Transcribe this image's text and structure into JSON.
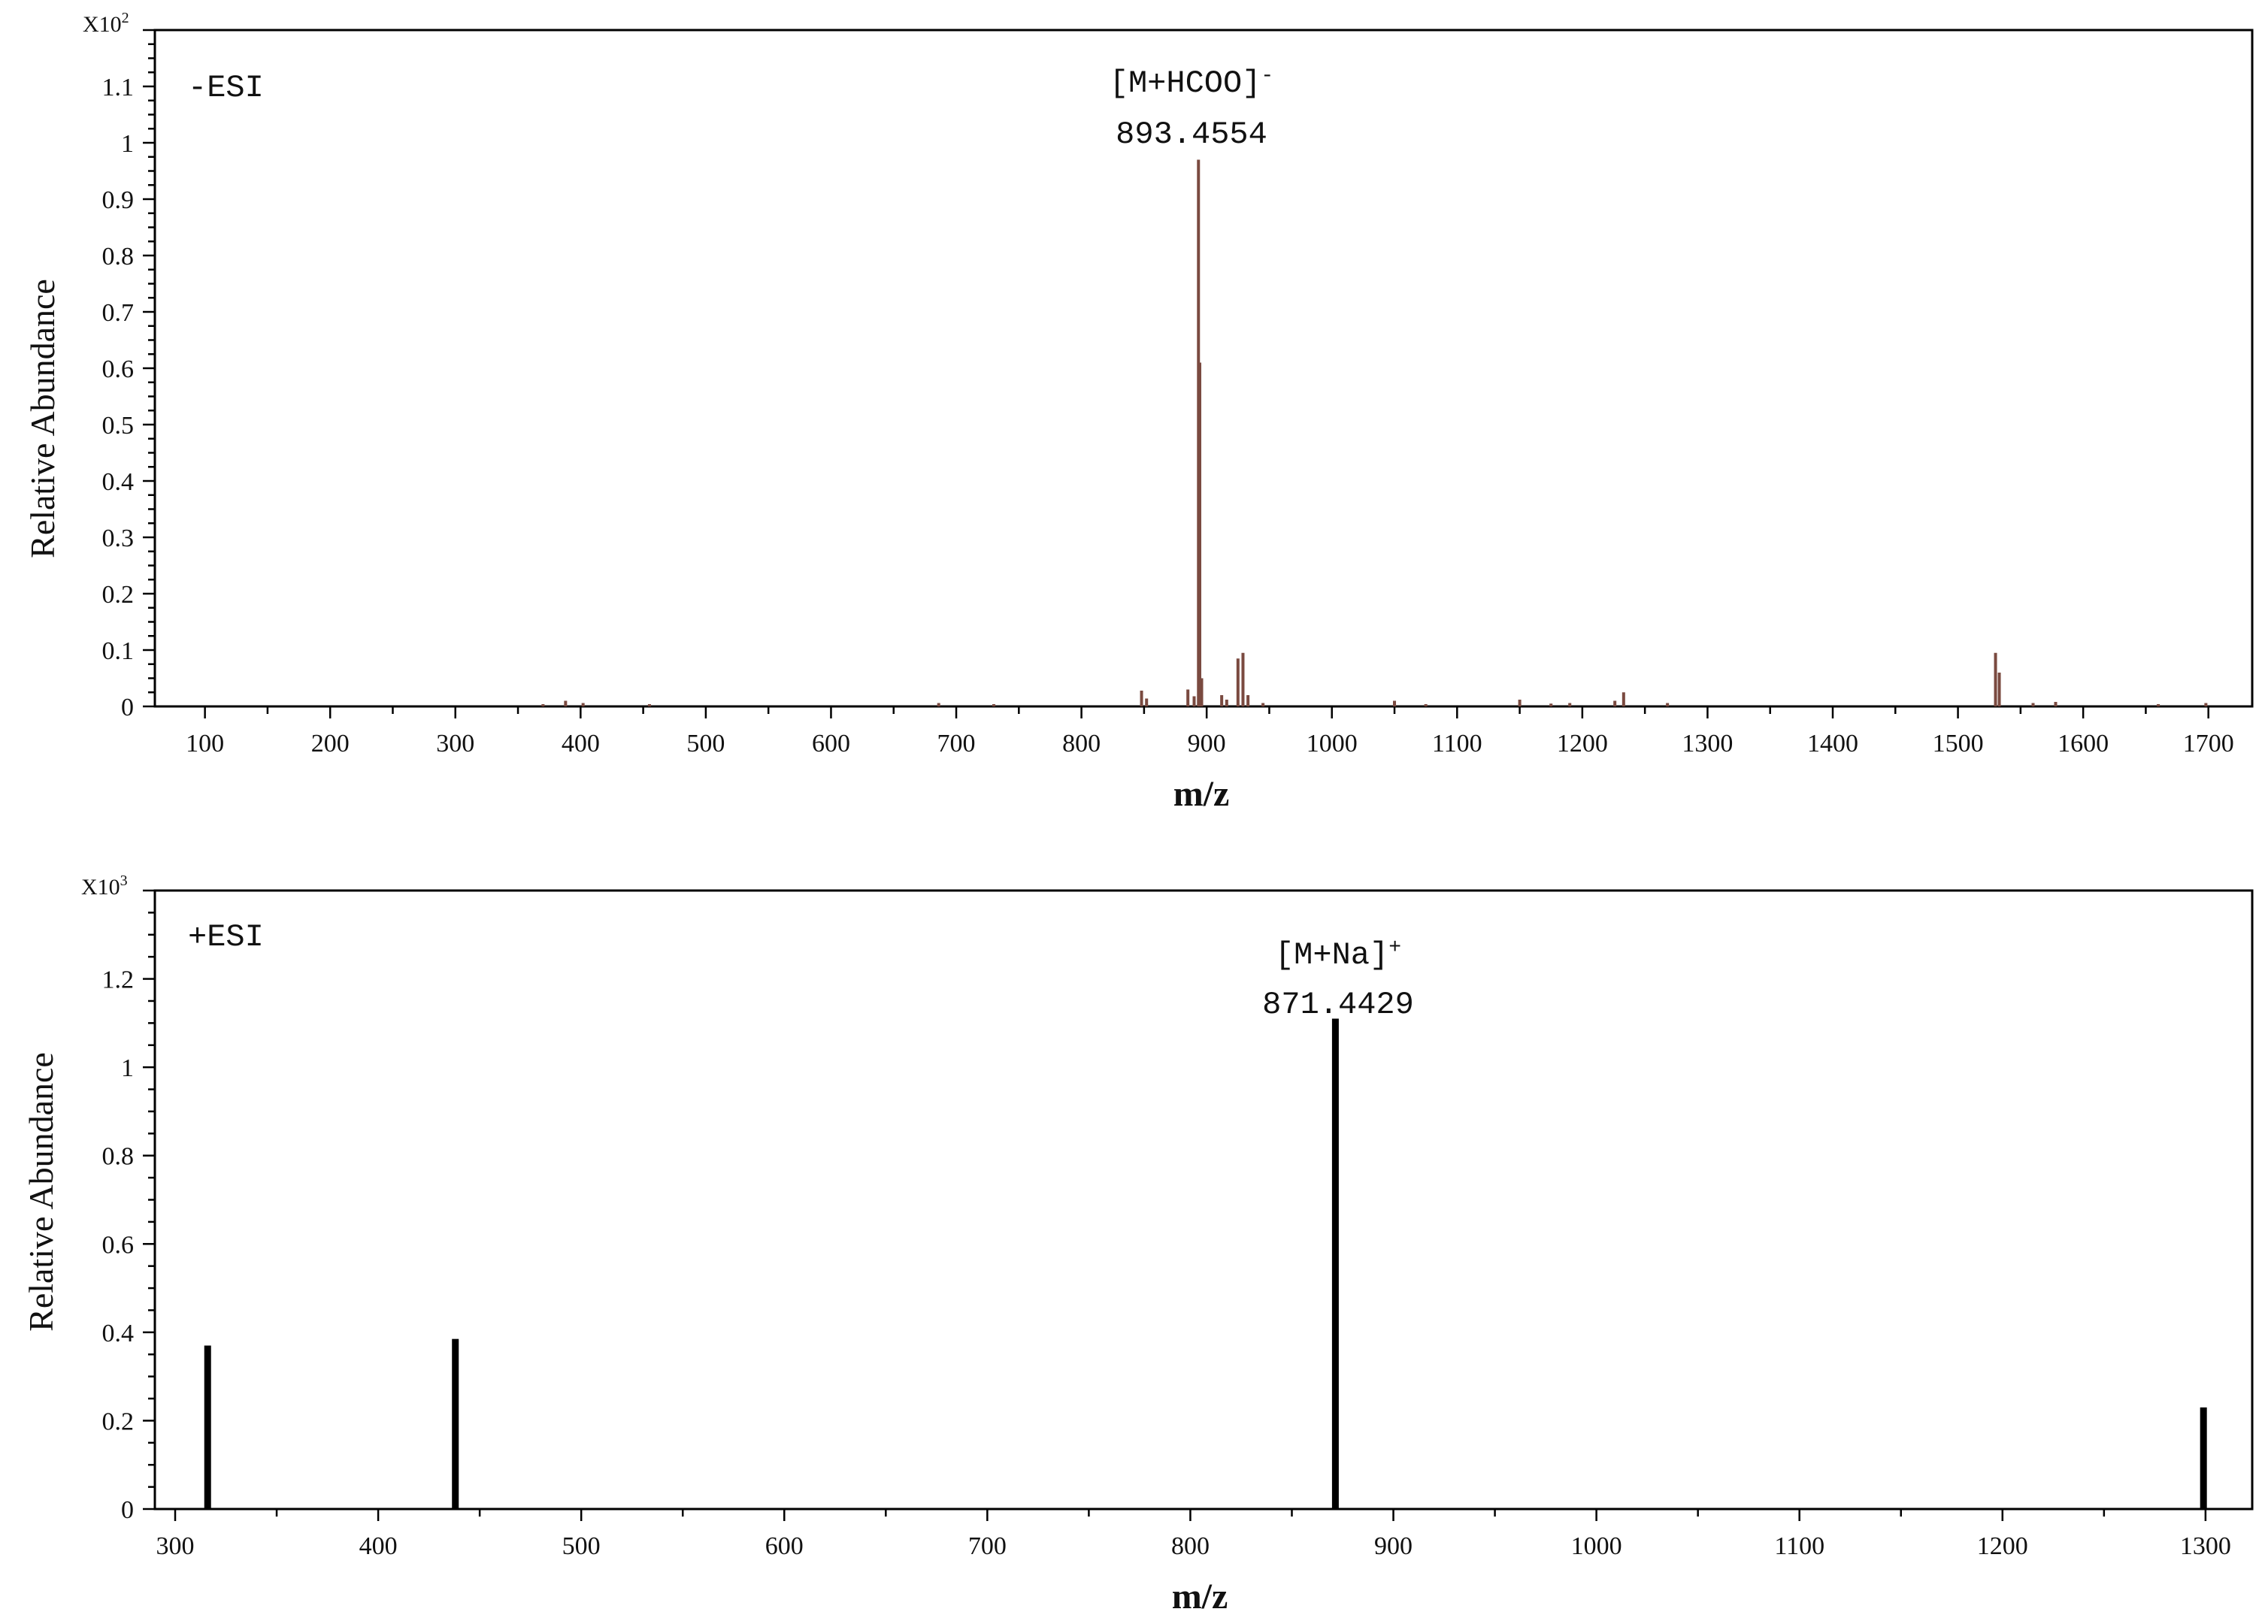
{
  "chart_data": [
    {
      "type": "bar",
      "mode_label": "-ESI",
      "exponent_label": "X10",
      "exponent_power": "2",
      "xlabel": "m/z",
      "ylabel": "Relative Abundance",
      "xlim": [
        60,
        1735
      ],
      "ylim": [
        0,
        1.2
      ],
      "xticks": [
        100,
        200,
        300,
        400,
        500,
        600,
        700,
        800,
        900,
        1000,
        1100,
        1200,
        1300,
        1400,
        1500,
        1600,
        1700
      ],
      "yticks": [
        0,
        0.1,
        0.2,
        0.3,
        0.4,
        0.5,
        0.6,
        0.7,
        0.8,
        0.9,
        1,
        1.1
      ],
      "ytick_labels": [
        "0",
        "0.1",
        "0.2",
        "0.3",
        "0.4",
        "0.5",
        "0.6",
        "0.7",
        "0.8",
        "0.9",
        "1",
        "1.1"
      ],
      "bar_color": "#7a4a40",
      "peaks": [
        {
          "mz": 370,
          "abundance": 0.004
        },
        {
          "mz": 388,
          "abundance": 0.01
        },
        {
          "mz": 402,
          "abundance": 0.006
        },
        {
          "mz": 455,
          "abundance": 0.004
        },
        {
          "mz": 686,
          "abundance": 0.006
        },
        {
          "mz": 730,
          "abundance": 0.004
        },
        {
          "mz": 848,
          "abundance": 0.028
        },
        {
          "mz": 852,
          "abundance": 0.014
        },
        {
          "mz": 885,
          "abundance": 0.03
        },
        {
          "mz": 890,
          "abundance": 0.018
        },
        {
          "mz": 893.4554,
          "abundance": 0.97
        },
        {
          "mz": 894.5,
          "abundance": 0.61
        },
        {
          "mz": 896,
          "abundance": 0.05
        },
        {
          "mz": 912,
          "abundance": 0.02
        },
        {
          "mz": 916,
          "abundance": 0.012
        },
        {
          "mz": 925,
          "abundance": 0.085
        },
        {
          "mz": 929,
          "abundance": 0.095
        },
        {
          "mz": 933,
          "abundance": 0.02
        },
        {
          "mz": 945,
          "abundance": 0.006
        },
        {
          "mz": 1050,
          "abundance": 0.01
        },
        {
          "mz": 1075,
          "abundance": 0.004
        },
        {
          "mz": 1150,
          "abundance": 0.012
        },
        {
          "mz": 1175,
          "abundance": 0.005
        },
        {
          "mz": 1190,
          "abundance": 0.006
        },
        {
          "mz": 1226,
          "abundance": 0.01
        },
        {
          "mz": 1233,
          "abundance": 0.025
        },
        {
          "mz": 1268,
          "abundance": 0.006
        },
        {
          "mz": 1530,
          "abundance": 0.095
        },
        {
          "mz": 1533,
          "abundance": 0.06
        },
        {
          "mz": 1560,
          "abundance": 0.006
        },
        {
          "mz": 1578,
          "abundance": 0.008
        },
        {
          "mz": 1660,
          "abundance": 0.004
        },
        {
          "mz": 1698,
          "abundance": 0.006
        }
      ],
      "annotation": {
        "label": "[M+HCOO]",
        "charge": "-",
        "value": "893.4554",
        "mz": 893.4554,
        "abundance": 0.97
      }
    },
    {
      "type": "bar",
      "mode_label": "+ESI",
      "exponent_label": "X10",
      "exponent_power": "3",
      "xlabel": "m/z",
      "ylabel": "Relative Abundance",
      "xlim": [
        290,
        1323
      ],
      "ylim": [
        0,
        1.4
      ],
      "xticks": [
        300,
        400,
        500,
        600,
        700,
        800,
        900,
        1000,
        1100,
        1200,
        1300
      ],
      "yticks": [
        0,
        0.2,
        0.4,
        0.6,
        0.8,
        1,
        1.2
      ],
      "ytick_labels": [
        "0",
        "0.2",
        "0.4",
        "0.6",
        "0.8",
        "1",
        "1.2"
      ],
      "bar_color": "#000000",
      "peaks": [
        {
          "mz": 316,
          "abundance": 0.37
        },
        {
          "mz": 438,
          "abundance": 0.385
        },
        {
          "mz": 871.4429,
          "abundance": 1.11
        },
        {
          "mz": 1299,
          "abundance": 0.23
        }
      ],
      "annotation": {
        "label": "[M+Na]",
        "charge": "+",
        "value": "871.4429",
        "mz": 871.4429,
        "abundance": 1.11
      }
    }
  ]
}
